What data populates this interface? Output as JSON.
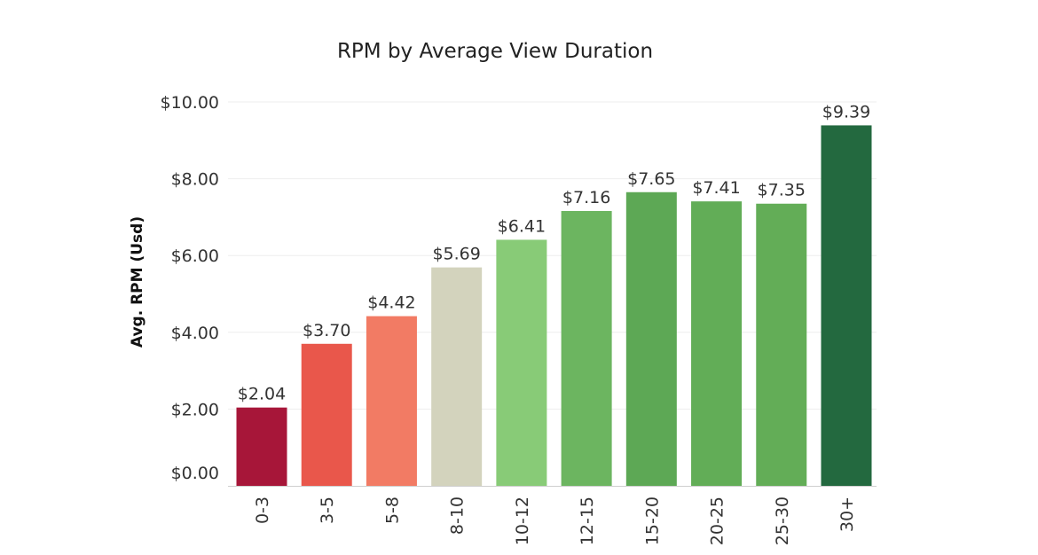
{
  "chart_data": {
    "type": "bar",
    "title": "RPM by Average View Duration",
    "xlabel": "",
    "ylabel": "Avg. RPM (Usd)",
    "categories": [
      "0-3",
      "3-5",
      "5-8",
      "8-10",
      "10-12",
      "12-15",
      "15-20",
      "20-25",
      "25-30",
      "30+"
    ],
    "values": [
      2.04,
      3.7,
      4.42,
      5.69,
      6.41,
      7.16,
      7.65,
      7.41,
      7.35,
      9.39
    ],
    "value_labels": [
      "$2.04",
      "$3.70",
      "$4.42",
      "$5.69",
      "$6.41",
      "$7.16",
      "$7.65",
      "$7.41",
      "$7.35",
      "$9.39"
    ],
    "yticks": [
      0,
      2,
      4,
      6,
      8,
      10
    ],
    "ytick_labels": [
      "$0.00",
      "$2.00",
      "$4.00",
      "$6.00",
      "$8.00",
      "$10.00"
    ],
    "ylim": [
      0,
      10
    ],
    "grid": true,
    "legend": false,
    "bar_colors": [
      "#a71639",
      "#e9574b",
      "#f27b64",
      "#d3d3bd",
      "#88cb77",
      "#6cb560",
      "#5da855",
      "#62ad57",
      "#63ad57",
      "#23693f"
    ]
  }
}
